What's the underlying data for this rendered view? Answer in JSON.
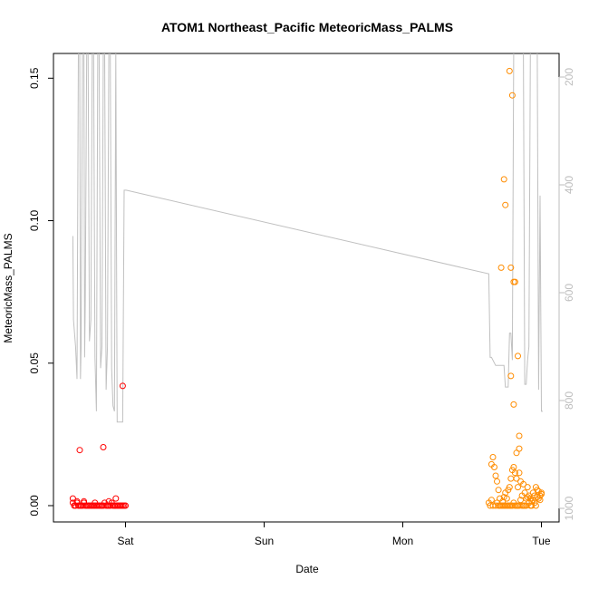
{
  "chart_data": {
    "type": "scatter",
    "title": "ATOM1 Northeast_Pacific MeteoricMass_PALMS",
    "xlabel": "Date",
    "ylabel": "MeteoricMass_PALMS",
    "x_ticks": [
      "Sat",
      "Sun",
      "Mon",
      "Tue"
    ],
    "y_ticks": [
      "0.00",
      "0.05",
      "0.10",
      "0.15"
    ],
    "y_tick_values": [
      0.0,
      0.05,
      0.1,
      0.15
    ],
    "ylim": [
      -0.005,
      0.16
    ],
    "xlim_days": [
      -0.44,
      3.05
    ],
    "right_axis": {
      "ticks": [
        "200",
        "400",
        "600",
        "800",
        "1000"
      ],
      "tick_values": [
        200,
        400,
        600,
        800,
        1000
      ],
      "range_top_to_bottom": [
        150,
        1025
      ],
      "color": "#bdbdbd",
      "note": "inverted pressure axis"
    },
    "grid": false,
    "legend": "none",
    "colors": {
      "series1": "#ff0000",
      "series2": "#ff8c00",
      "line": "#c0c0c0",
      "axis": "#000000"
    },
    "series": [
      {
        "color": "#ff0000",
        "x_day": [
          -0.38,
          -0.37,
          -0.36,
          -0.35,
          -0.34,
          -0.33,
          -0.32,
          -0.31,
          -0.3,
          -0.29,
          -0.28,
          -0.27,
          -0.26,
          -0.25,
          -0.24,
          -0.23,
          -0.22,
          -0.21,
          -0.2,
          -0.19,
          -0.18,
          -0.17,
          -0.16,
          -0.15,
          -0.14,
          -0.13,
          -0.12,
          -0.11,
          -0.1,
          -0.09,
          -0.08,
          -0.07,
          -0.06,
          -0.05,
          -0.04,
          -0.03,
          -0.02,
          -0.01,
          0.0,
          -0.33,
          -0.16,
          -0.02,
          -0.38,
          -0.35,
          -0.3,
          -0.22,
          -0.12,
          -0.07
        ],
        "values": [
          0.001,
          0.0,
          0.0,
          0.001,
          0.0,
          0.0,
          0.0,
          0.0,
          0.001,
          0.0,
          0.0,
          0.0,
          0.0,
          0.0,
          0.0,
          0.0,
          0.0,
          0.0,
          0.0,
          0.0,
          0.0,
          0.0,
          0.0,
          0.001,
          0.0,
          0.0,
          0.0,
          0.0,
          0.001,
          0.0,
          0.0,
          0.0,
          0.0,
          0.0,
          0.0,
          0.0,
          0.0,
          0.0,
          0.0,
          0.0195,
          0.0205,
          0.042,
          0.0025,
          0.0015,
          0.0015,
          0.001,
          0.0015,
          0.0025
        ]
      },
      {
        "color": "#ff8c00",
        "x_day": [
          2.62,
          2.63,
          2.64,
          2.65,
          2.67,
          2.68,
          2.69,
          2.7,
          2.71,
          2.72,
          2.73,
          2.74,
          2.75,
          2.76,
          2.77,
          2.78,
          2.79,
          2.8,
          2.81,
          2.82,
          2.83,
          2.84,
          2.85,
          2.86,
          2.87,
          2.88,
          2.89,
          2.9,
          2.91,
          2.92,
          2.93,
          2.94,
          2.95,
          2.96,
          2.97,
          2.98,
          2.99,
          3.0,
          2.65,
          2.66,
          2.67,
          2.68,
          2.69,
          2.7,
          2.72,
          2.73,
          2.74,
          2.75,
          2.76,
          2.77,
          2.78,
          2.79,
          2.8,
          2.81,
          2.82,
          2.83,
          2.84,
          2.85,
          2.86,
          2.87,
          2.88,
          2.89,
          2.9,
          2.91,
          2.92,
          2.93,
          2.94,
          2.95,
          2.96,
          2.97,
          2.98,
          2.99,
          3.0,
          2.78,
          2.8,
          2.82,
          2.84
        ],
        "values": [
          0.001,
          0.0,
          0.002,
          0.0,
          0.0,
          0.001,
          0.0,
          0.0,
          0.0,
          0.0,
          0.0,
          0.0,
          0.0,
          0.0,
          0.0,
          0.0,
          0.0,
          0.001,
          0.0,
          0.0,
          0.0,
          0.0,
          0.002,
          0.0,
          0.0,
          0.0,
          0.0,
          0.003,
          0.001,
          0.0,
          0.0,
          0.002,
          0.001,
          0.0,
          0.003,
          0.005,
          0.002,
          0.004,
          0.017,
          0.0135,
          0.0105,
          0.0085,
          0.0055,
          0.0025,
          0.0015,
          0.003,
          0.0045,
          0.0025,
          0.0055,
          0.0065,
          0.0095,
          0.0125,
          0.0135,
          0.0115,
          0.0095,
          0.0065,
          0.0115,
          0.0085,
          0.0035,
          0.0075,
          0.0045,
          0.0025,
          0.0065,
          0.0035,
          0.0025,
          0.0015,
          0.0045,
          0.0035,
          0.0065,
          0.0055,
          0.0025,
          0.0035,
          0.0045,
          0.0455,
          0.0355,
          0.0185,
          0.0245
        ],
        "extra_x_day": [
          2.64,
          2.71,
          2.73,
          2.74,
          2.77,
          2.78,
          2.79,
          2.8,
          2.81,
          2.83,
          2.84
        ],
        "extra_values": [
          0.0145,
          0.0835,
          0.1145,
          0.1055,
          0.1525,
          0.0835,
          0.144,
          0.0785,
          0.0785,
          0.0525,
          0.02
        ]
      }
    ],
    "line_series": {
      "color": "#c0c0c0",
      "axis": "right",
      "x_day": [
        -0.38,
        -0.375,
        -0.36,
        -0.35,
        -0.34,
        -0.33,
        -0.325,
        -0.32,
        -0.31,
        -0.3,
        -0.295,
        -0.29,
        -0.28,
        -0.27,
        -0.26,
        -0.25,
        -0.24,
        -0.23,
        -0.22,
        -0.21,
        -0.2,
        -0.19,
        -0.18,
        -0.17,
        -0.16,
        -0.15,
        -0.14,
        -0.13,
        -0.12,
        -0.11,
        -0.1,
        -0.09,
        -0.08,
        -0.07,
        -0.06,
        -0.05,
        -0.04,
        -0.03,
        -0.02,
        -0.01,
        0.0,
        0.005,
        2.62,
        2.63,
        2.64,
        2.67,
        2.68,
        2.72,
        2.73,
        2.74,
        2.75,
        2.76,
        2.77,
        2.78,
        2.79,
        2.8,
        2.81,
        2.82,
        2.83,
        2.84,
        2.85,
        2.86,
        2.87,
        2.88,
        2.89,
        2.9,
        2.91,
        2.92,
        2.93,
        2.94,
        2.95,
        2.96,
        2.97,
        2.98,
        2.99,
        3.0,
        3.01
      ],
      "pressure": [
        495,
        650,
        700,
        760,
        150,
        150,
        760,
        700,
        150,
        150,
        720,
        620,
        150,
        150,
        690,
        650,
        150,
        150,
        720,
        820,
        150,
        150,
        740,
        700,
        150,
        150,
        780,
        700,
        150,
        150,
        740,
        810,
        820,
        150,
        840,
        840,
        840,
        840,
        840,
        410,
        410,
        410,
        565,
        720,
        720,
        735,
        735,
        735,
        735,
        775,
        775,
        775,
        675,
        675,
        725,
        150,
        150,
        150,
        150,
        150,
        150,
        150,
        150,
        770,
        770,
        725,
        700,
        150,
        150,
        150,
        150,
        150,
        150,
        780,
        420,
        820,
        820
      ]
    }
  }
}
